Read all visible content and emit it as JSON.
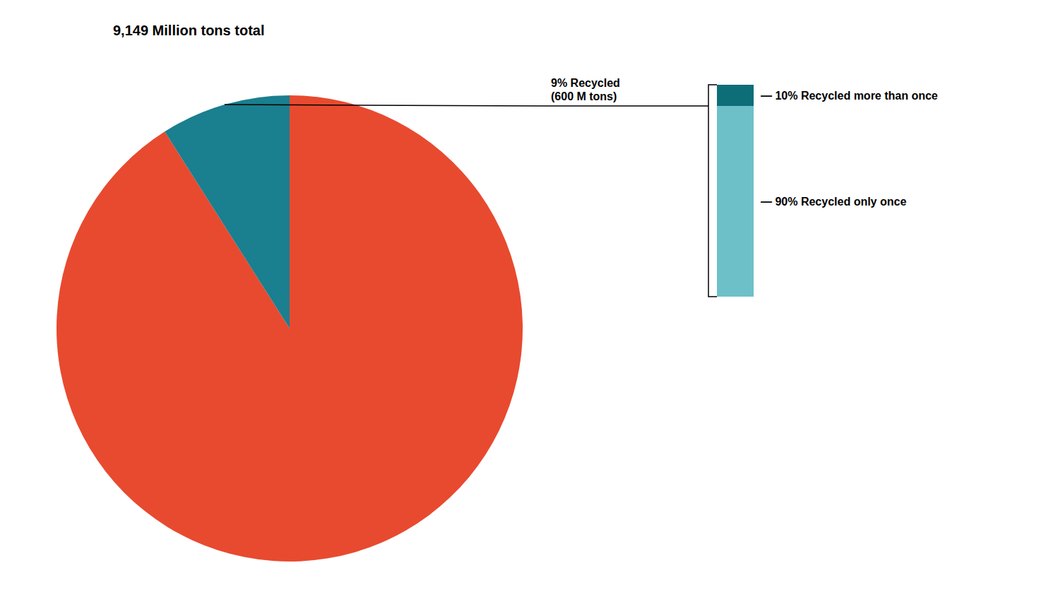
{
  "chart_data": [
    {
      "type": "pie",
      "title": "9,149 Million tons total",
      "values": [
        91,
        9
      ],
      "colors": [
        "#E84A2F",
        "#1A7F8E"
      ],
      "annotation": "9% Recycled\n(600 M tons)"
    },
    {
      "type": "bar",
      "stacked": true,
      "categories": [
        null
      ],
      "series": [
        {
          "name": "— 90% Recycled only once",
          "color": "#6DC0C8",
          "values": [
            90
          ]
        },
        {
          "name": "— 10% Recycled more than once",
          "color": "#0D6E78",
          "values": [
            10
          ]
        }
      ],
      "ylim": [
        0,
        100
      ],
      "tick_labels": false
    }
  ]
}
